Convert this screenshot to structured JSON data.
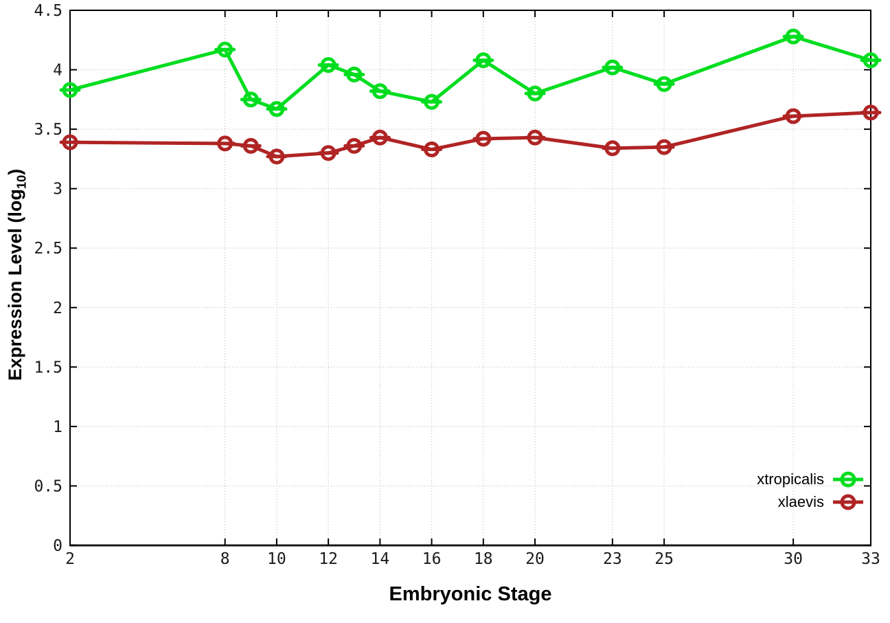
{
  "figure": {
    "background": "#ffffff",
    "x_axis_title": "Embryonic Stage",
    "y_axis_title_main": "Expression Level (log",
    "y_axis_title_sub": "10",
    "y_axis_title_close": ")"
  },
  "chart_data": {
    "type": "line",
    "title": "",
    "xlabel": "Embryonic Stage",
    "ylabel": "Expression Level (log10)",
    "style": "linespoints-with-error-caps",
    "marker": "open-circle",
    "grid": true,
    "legend_position": "bottom-right",
    "xlim": [
      2,
      33
    ],
    "ylim": [
      0,
      4.5
    ],
    "x_ticks": [
      2,
      8,
      10,
      12,
      14,
      16,
      18,
      20,
      23,
      25,
      30,
      33
    ],
    "y_ticks": [
      0,
      0.5,
      1,
      1.5,
      2,
      2.5,
      3,
      3.5,
      4,
      4.5
    ],
    "x": [
      2,
      8,
      9,
      10,
      12,
      13,
      14,
      16,
      18,
      20,
      23,
      25,
      30,
      33
    ],
    "series": [
      {
        "name": "xtropicalis",
        "color": "#00dd1f",
        "values": [
          3.83,
          4.17,
          3.75,
          3.67,
          4.04,
          3.96,
          3.82,
          3.73,
          4.08,
          3.8,
          4.02,
          3.88,
          4.28,
          4.08
        ]
      },
      {
        "name": "xlaevis",
        "color": "#b02424",
        "values": [
          3.39,
          3.38,
          3.36,
          3.27,
          3.3,
          3.36,
          3.43,
          3.33,
          3.42,
          3.43,
          3.34,
          3.35,
          3.61,
          3.64
        ]
      }
    ]
  }
}
